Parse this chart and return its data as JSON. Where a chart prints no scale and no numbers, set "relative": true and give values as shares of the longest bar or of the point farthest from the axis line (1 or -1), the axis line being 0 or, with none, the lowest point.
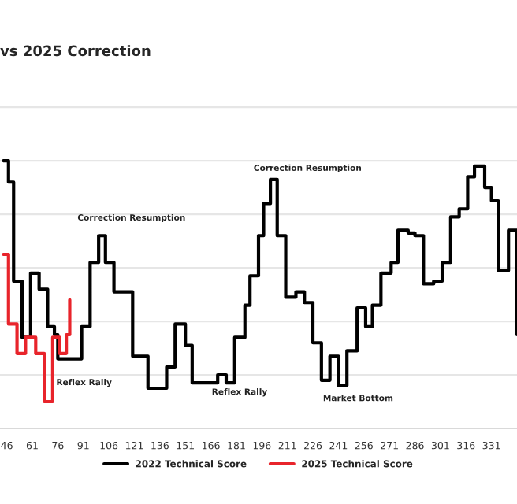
{
  "chart_data": {
    "type": "step",
    "title": "vs 2025 Correction",
    "relative": true,
    "grid": "y",
    "legend": "bottom",
    "marker": "none",
    "line_style": "solid",
    "xlim": [
      42,
      346
    ],
    "xticks": [
      46,
      61,
      76,
      91,
      106,
      121,
      136,
      151,
      166,
      181,
      196,
      211,
      226,
      241,
      256,
      271,
      286,
      301,
      316,
      331
    ],
    "series": [
      {
        "name": "2022 Technical Score",
        "color": "#000000",
        "x": [
          44,
          47,
          50,
          55,
          60,
          65,
          70,
          74,
          76,
          90,
          95,
          100,
          104,
          109,
          120,
          129,
          140,
          145,
          151,
          155,
          170,
          175,
          180,
          186,
          189,
          194,
          197,
          201,
          205,
          210,
          216,
          221,
          226,
          231,
          236,
          241,
          246,
          252,
          257,
          261,
          266,
          272,
          276,
          282,
          286,
          291,
          297,
          302,
          307,
          312,
          317,
          321,
          327,
          331,
          335,
          341,
          346
        ],
        "values": [
          1.0,
          0.92,
          0.55,
          0.34,
          0.58,
          0.52,
          0.38,
          0.35,
          0.26,
          0.38,
          0.62,
          0.72,
          0.62,
          0.51,
          0.27,
          0.15,
          0.23,
          0.39,
          0.31,
          0.17,
          0.2,
          0.17,
          0.34,
          0.46,
          0.57,
          0.72,
          0.84,
          0.93,
          0.72,
          0.49,
          0.51,
          0.47,
          0.32,
          0.18,
          0.27,
          0.16,
          0.29,
          0.45,
          0.38,
          0.46,
          0.58,
          0.62,
          0.74,
          0.73,
          0.72,
          0.54,
          0.55,
          0.62,
          0.79,
          0.82,
          0.94,
          0.98,
          0.9,
          0.85,
          0.59,
          0.74,
          0.35
        ]
      },
      {
        "name": "2025 Technical Score",
        "color": "#e8242b",
        "x": [
          44,
          47,
          52,
          57,
          63,
          68,
          73,
          77,
          81,
          83
        ],
        "values": [
          0.65,
          0.39,
          0.28,
          0.34,
          0.28,
          0.1,
          0.34,
          0.28,
          0.35,
          0.48
        ]
      }
    ],
    "annotations": [
      {
        "text": "Correction Resumption",
        "x": 100,
        "y": 0.72
      },
      {
        "text": "Reflex Rally",
        "x": 76,
        "y": 0.26
      },
      {
        "text": "Reflex Rally",
        "x": 170,
        "y": 0.2
      },
      {
        "text": "Correction Resumption",
        "x": 201,
        "y": 0.93
      },
      {
        "text": "Market Bottom",
        "x": 241,
        "y": 0.16
      }
    ]
  }
}
